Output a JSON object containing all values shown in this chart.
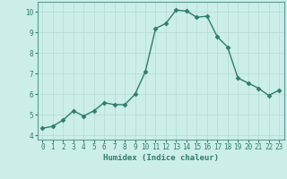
{
  "x": [
    0,
    1,
    2,
    3,
    4,
    5,
    6,
    7,
    8,
    9,
    10,
    11,
    12,
    13,
    14,
    15,
    16,
    17,
    18,
    19,
    20,
    21,
    22,
    23
  ],
  "y": [
    4.35,
    4.45,
    4.75,
    5.2,
    4.95,
    5.2,
    5.6,
    5.5,
    5.5,
    6.0,
    7.1,
    9.2,
    9.45,
    10.1,
    10.05,
    9.75,
    9.8,
    8.8,
    8.3,
    6.8,
    6.55,
    6.3,
    5.95,
    6.2
  ],
  "line_color": "#2e7d6e",
  "marker": "D",
  "marker_size": 2.5,
  "bg_color": "#cceee8",
  "grid_color": "#b8ddd7",
  "xlabel": "Humidex (Indice chaleur)",
  "xlim": [
    -0.5,
    23.5
  ],
  "ylim": [
    3.8,
    10.5
  ],
  "yticks": [
    4,
    5,
    6,
    7,
    8,
    9,
    10
  ],
  "xticks": [
    0,
    1,
    2,
    3,
    4,
    5,
    6,
    7,
    8,
    9,
    10,
    11,
    12,
    13,
    14,
    15,
    16,
    17,
    18,
    19,
    20,
    21,
    22,
    23
  ],
  "tick_fontsize": 5.5,
  "label_fontsize": 6.5,
  "line_width": 1.0,
  "tick_color": "#2e7d6e",
  "spine_color": "#5a9e94"
}
